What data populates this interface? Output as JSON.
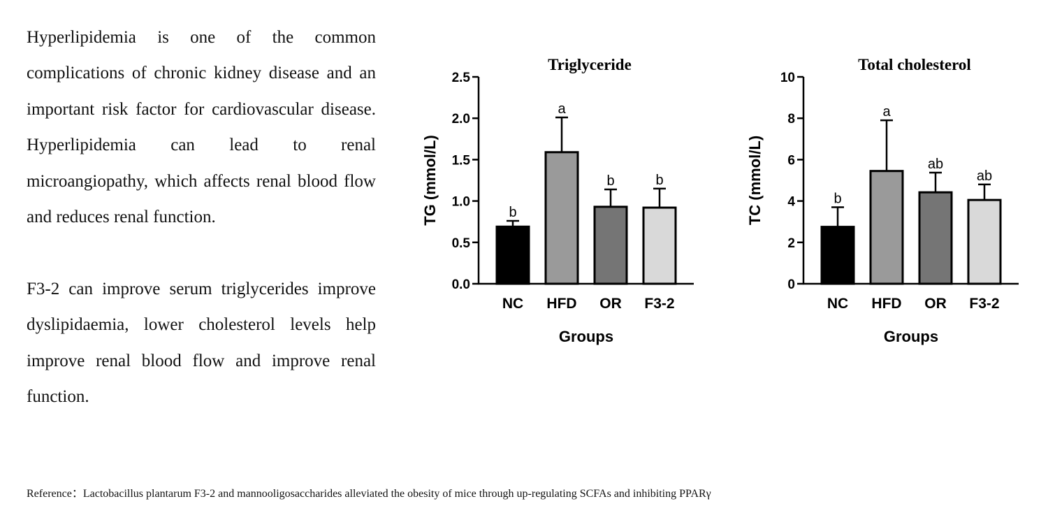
{
  "text": {
    "paragraph1": "Hyperlipidemia is one of the common complications of chronic kidney disease and an important risk factor for cardiovascular disease. Hyperlipidemia can lead to renal microangiopathy, which affects renal blood flow and reduces renal function.",
    "paragraph2": "F3-2 can improve serum triglycerides improve dyslipidaemia, lower cholesterol levels help improve renal blood flow and improve renal function.",
    "reference": "Reference：Lactobacillus plantarum F3-2 and mannooligosaccharides alleviated the obesity of mice through up-regulating SCFAs and inhibiting PPARγ"
  },
  "colors": {
    "NC": "#000000",
    "HFD": "#9a9a9a",
    "OR": "#757575",
    "F3-2": "#d9d9d9"
  },
  "chart_data": [
    {
      "type": "bar",
      "title": "Triglyceride",
      "xlabel": "Groups",
      "ylabel": "TG (mmol/L)",
      "categories": [
        "NC",
        "HFD",
        "OR",
        "F3-2"
      ],
      "values": [
        0.69,
        1.59,
        0.93,
        0.92
      ],
      "errors": [
        0.07,
        0.42,
        0.21,
        0.23
      ],
      "significance": [
        "b",
        "a",
        "b",
        "b"
      ],
      "ylim": [
        0,
        2.5
      ],
      "yticks": [
        0.0,
        0.5,
        1.0,
        1.5,
        2.0,
        2.5
      ],
      "ytick_labels": [
        "0.0",
        "0.5",
        "1.0",
        "1.5",
        "2.0",
        "2.5"
      ],
      "grid": false,
      "legend": "none"
    },
    {
      "type": "bar",
      "title": "Total cholesterol",
      "xlabel": "Groups",
      "ylabel": "TC (mmol/L)",
      "categories": [
        "NC",
        "HFD",
        "OR",
        "F3-2"
      ],
      "values": [
        2.75,
        5.45,
        4.42,
        4.05
      ],
      "errors": [
        0.95,
        2.45,
        0.95,
        0.75
      ],
      "significance": [
        "b",
        "a",
        "ab",
        "ab"
      ],
      "ylim": [
        0,
        10
      ],
      "yticks": [
        0,
        2,
        4,
        6,
        8,
        10
      ],
      "ytick_labels": [
        "0",
        "2",
        "4",
        "6",
        "8",
        "10"
      ],
      "grid": false,
      "legend": "none"
    }
  ]
}
